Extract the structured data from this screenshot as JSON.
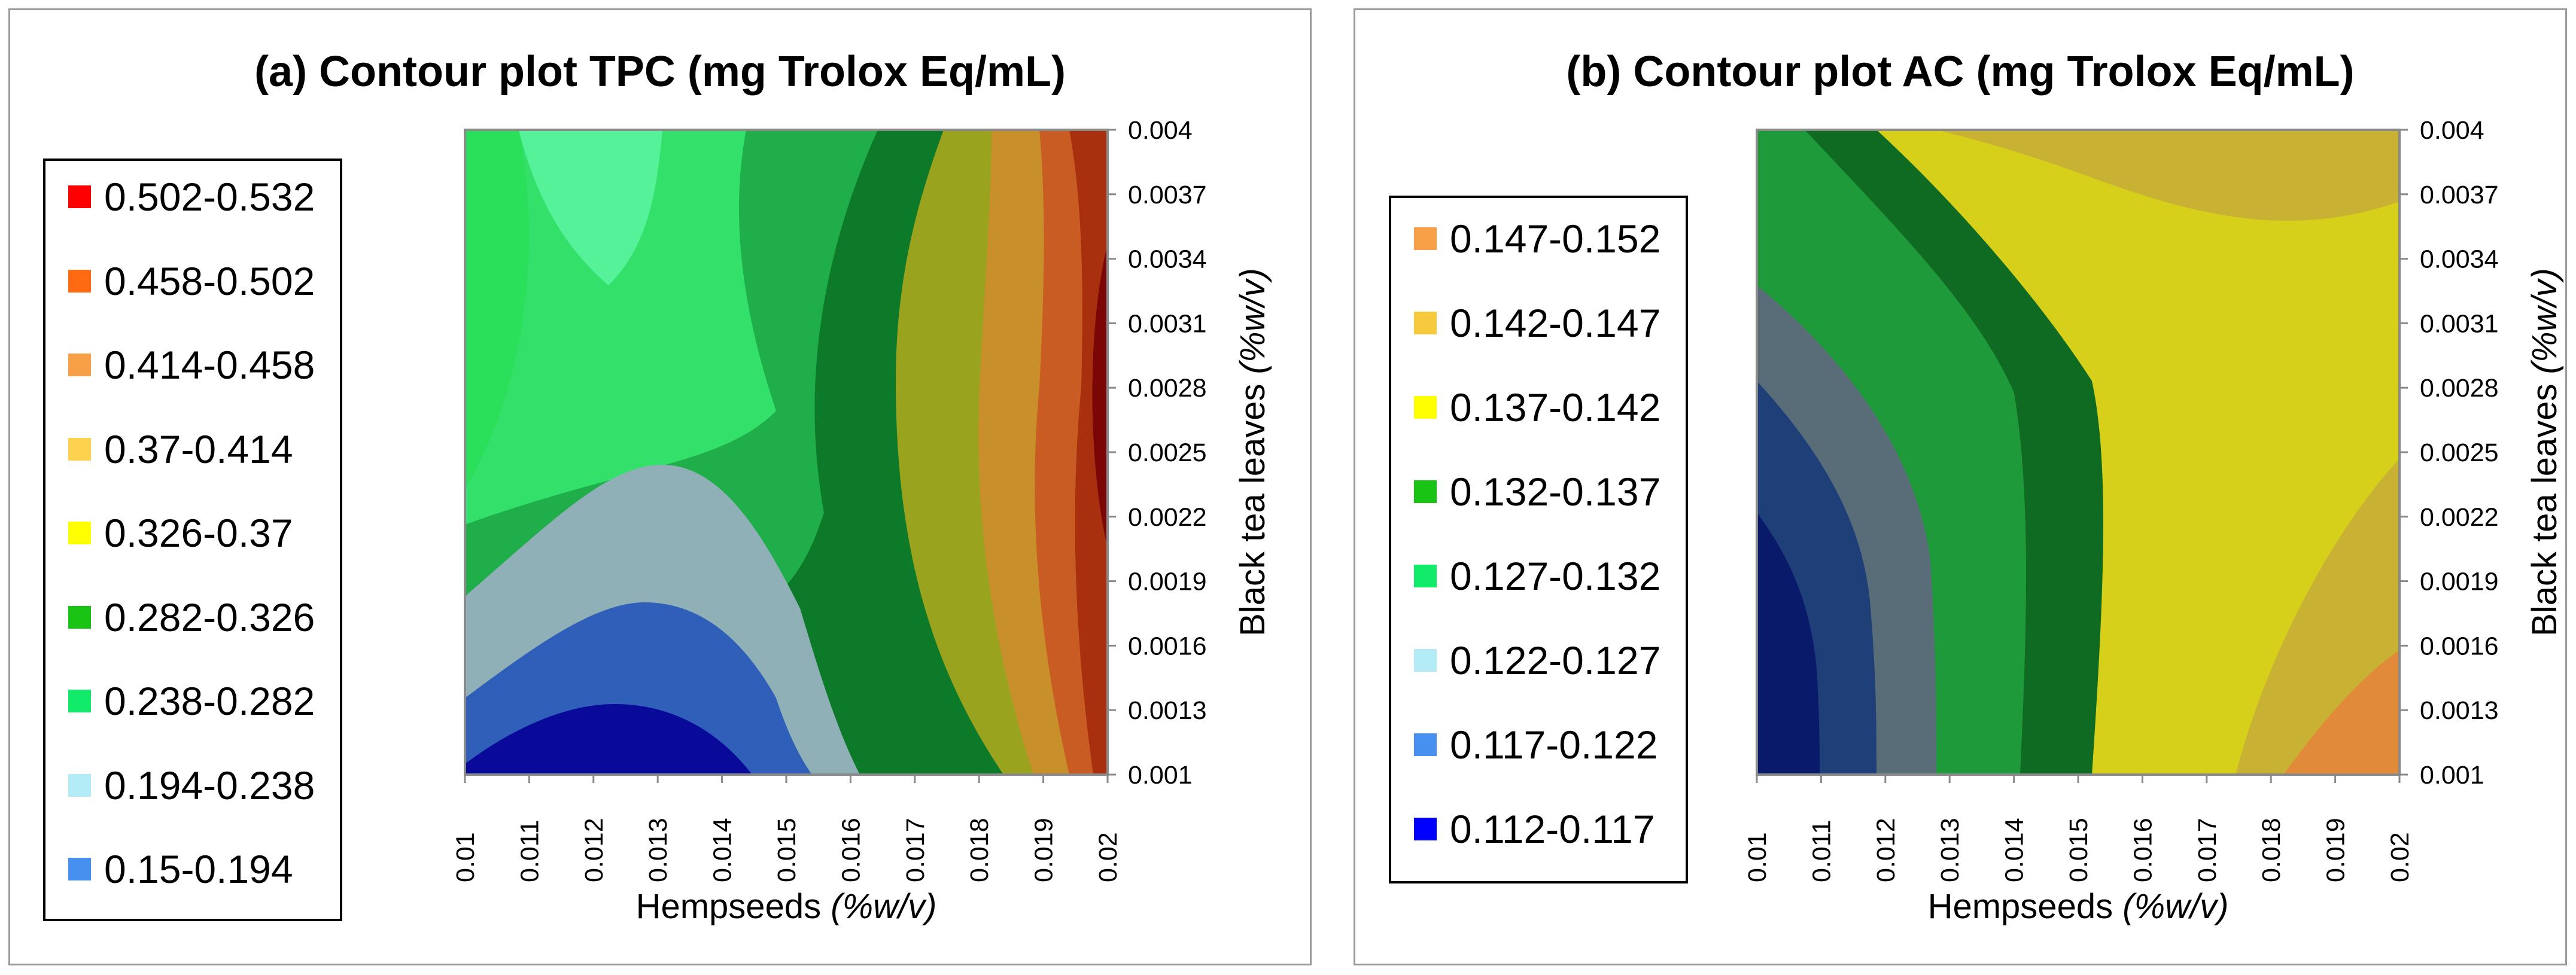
{
  "chart_data": [
    {
      "type": "contour",
      "title": "(a) Contour plot TPC (mg Trolox Eq/mL)",
      "xlabel": {
        "text": "Hempseeds ",
        "unit": "(%w/v)"
      },
      "ylabel": {
        "text": "Black tea leaves ",
        "unit": "(%w/v)"
      },
      "x_ticks": [
        "0.01",
        "0.011",
        "0.012",
        "0.013",
        "0.014",
        "0.015",
        "0.016",
        "0.017",
        "0.018",
        "0.019",
        "0.02"
      ],
      "y_ticks": [
        "0.001",
        "0.0013",
        "0.0016",
        "0.0019",
        "0.0022",
        "0.0025",
        "0.0028",
        "0.0031",
        "0.0034",
        "0.0037",
        "0.004"
      ],
      "xlim": [
        0.01,
        0.02
      ],
      "ylim": [
        0.001,
        0.004
      ],
      "legend": [
        {
          "range": "0.502-0.532",
          "color": "#ff0000"
        },
        {
          "range": "0.458-0.502",
          "color": "#ff6a13"
        },
        {
          "range": "0.414-0.458",
          "color": "#f7a047"
        },
        {
          "range": "0.37-0.414",
          "color": "#fdd24e"
        },
        {
          "range": "0.326-0.37",
          "color": "#ffff00"
        },
        {
          "range": "0.282-0.326",
          "color": "#19c414"
        },
        {
          "range": "0.238-0.282",
          "color": "#12eb6a"
        },
        {
          "range": "0.194-0.238",
          "color": "#b3ecf6"
        },
        {
          "range": "0.15-0.194",
          "color": "#4890ef"
        }
      ],
      "fill_colors": {
        "navy": "#0a0a9a",
        "blue": "#2f5fb8",
        "grayblue": "#8fb0b6",
        "lightgreen": "#33e069",
        "midgreen": "#1fae4a",
        "darkgreen": "#0d7a2a",
        "olive": "#9aa31d",
        "ochre": "#c98f2a",
        "orange": "#c95c22",
        "brown": "#a8300e",
        "maroon": "#7a0606"
      }
    },
    {
      "type": "contour",
      "title": "(b) Contour plot AC (mg Trolox Eq/mL)",
      "xlabel": {
        "text": "Hempseeds ",
        "unit": "(%w/v)"
      },
      "ylabel": {
        "text": "Black tea leaves ",
        "unit": "(%w/v)"
      },
      "x_ticks": [
        "0.01",
        "0.011",
        "0.012",
        "0.013",
        "0.014",
        "0.015",
        "0.016",
        "0.017",
        "0.018",
        "0.019",
        "0.02"
      ],
      "y_ticks": [
        "0.001",
        "0.0013",
        "0.0016",
        "0.0019",
        "0.0022",
        "0.0025",
        "0.0028",
        "0.0031",
        "0.0034",
        "0.0037",
        "0.004"
      ],
      "xlim": [
        0.01,
        0.02
      ],
      "ylim": [
        0.001,
        0.004
      ],
      "legend": [
        {
          "range": "0.147-0.152",
          "color": "#f7a047"
        },
        {
          "range": "0.142-0.147",
          "color": "#f7c93c"
        },
        {
          "range": "0.137-0.142",
          "color": "#ffff00"
        },
        {
          "range": "0.132-0.137",
          "color": "#19c414"
        },
        {
          "range": "0.127-0.132",
          "color": "#12eb6a"
        },
        {
          "range": "0.122-0.127",
          "color": "#b3ecf6"
        },
        {
          "range": "0.117-0.122",
          "color": "#4890ef"
        },
        {
          "range": "0.112-0.117",
          "color": "#0000ff"
        }
      ],
      "fill_colors": {
        "navy": "#0a1a6a",
        "blue": "#1f3f78",
        "grayblue": "#596d78",
        "darkgreen": "#0f6a22",
        "green": "#1f9a3a",
        "yellow": "#d6d01a",
        "khaki": "#c9b233",
        "orange": "#e08a3a"
      }
    }
  ]
}
